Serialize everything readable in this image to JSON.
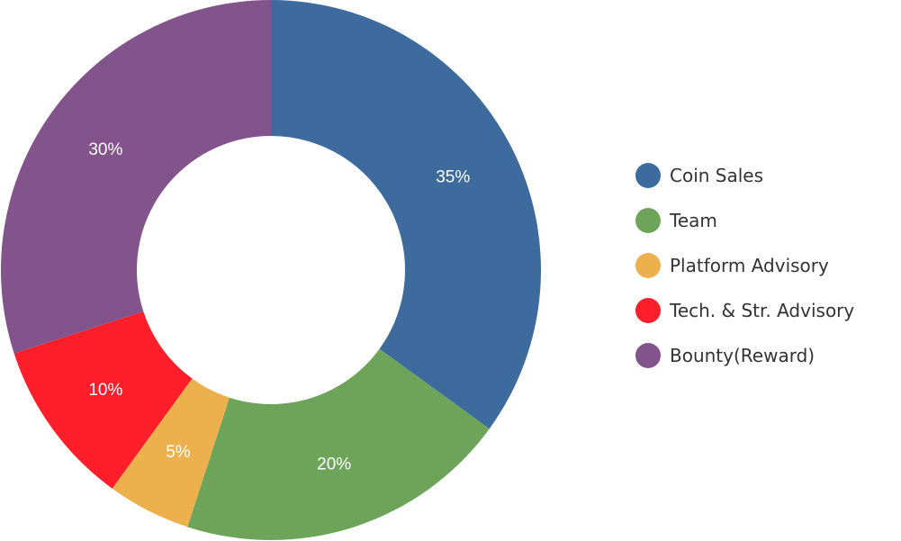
{
  "chart_data": {
    "type": "pie",
    "categories": [
      "Coin Sales",
      "Team",
      "Platform Advisory",
      "Tech. & Str. Advisory",
      "Bounty(Reward)"
    ],
    "values": [
      35,
      20,
      5,
      10,
      30
    ],
    "labels": [
      "35%",
      "20%",
      "5%",
      "10%",
      "30%"
    ],
    "colors": [
      "#3d6b9e",
      "#6ea45a",
      "#ecb04c",
      "#fe1f2a",
      "#83548c"
    ],
    "donut": true,
    "legend_position": "right"
  }
}
